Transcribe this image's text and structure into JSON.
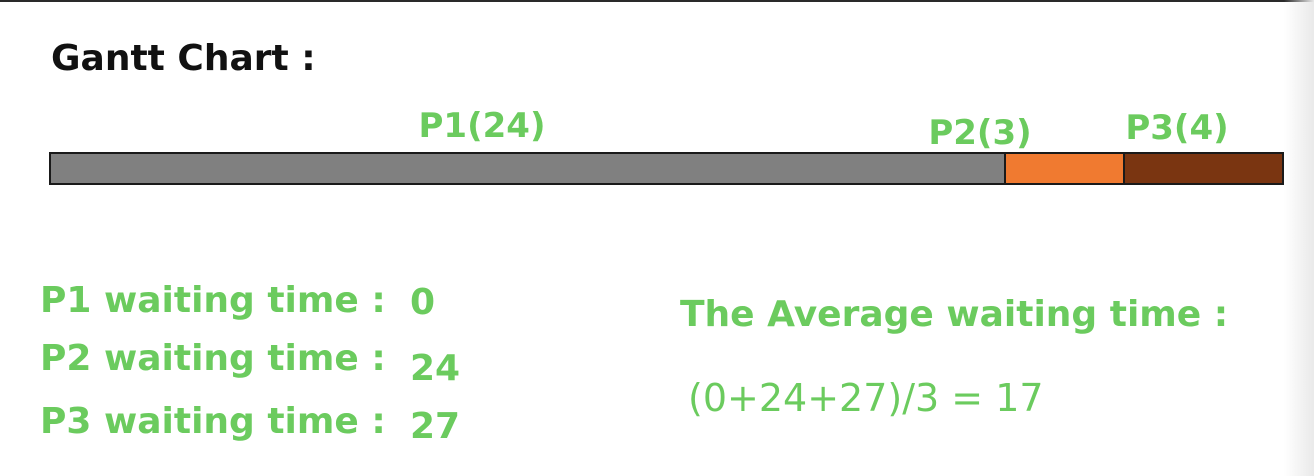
{
  "title": "Gantt Chart :",
  "colors": {
    "text_green": "#6bcb5e",
    "title": "#111111",
    "border": "#1a1a1a"
  },
  "gantt": {
    "segments": [
      {
        "label": "P1(24)",
        "duration": 24,
        "color": "#808080"
      },
      {
        "label": "P2(3)",
        "duration": 3,
        "color": "#f07a30"
      },
      {
        "label": "P3(4)",
        "duration": 4,
        "color": "#7a3511"
      }
    ]
  },
  "waiting": [
    {
      "label": "P1 waiting time :",
      "value": "0"
    },
    {
      "label": "P2 waiting time :",
      "value": "24"
    },
    {
      "label": "P3 waiting time :",
      "value": "27"
    }
  ],
  "average": {
    "title": "The Average waiting time :",
    "formula": "(0+24+27)/3 = 17"
  }
}
